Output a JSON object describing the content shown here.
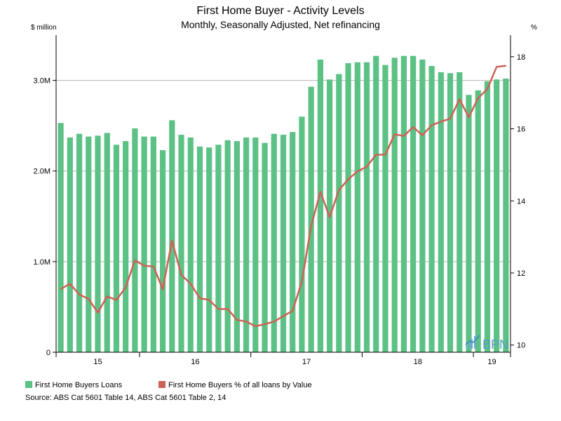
{
  "chart_data": {
    "type": "bar",
    "title": "First Home Buyer - Activity Levels",
    "subtitle": "Monthly, Seasonally Adjusted, Net refinancing",
    "left_unit": "$ million",
    "right_unit": "%",
    "y_left": {
      "min": 0,
      "max": 3.5,
      "ticks": [
        0,
        1,
        2,
        3
      ],
      "tick_labels": [
        "0",
        "1.0M",
        "2.0M",
        "3.0M"
      ]
    },
    "y_right": {
      "min": 9.8,
      "max": 18.6,
      "ticks": [
        10,
        12,
        14,
        16,
        18
      ],
      "tick_labels": [
        "10",
        "12",
        "14",
        "16",
        "18"
      ]
    },
    "x_year_labels": [
      "15",
      "16",
      "17",
      "18",
      "19"
    ],
    "grid": true,
    "series": [
      {
        "name": "First Home Buyers Loans",
        "type": "bar",
        "axis": "left",
        "color": "#5cc185",
        "values": [
          2.53,
          2.37,
          2.41,
          2.38,
          2.39,
          2.42,
          2.29,
          2.33,
          2.47,
          2.38,
          2.38,
          2.23,
          2.56,
          2.4,
          2.37,
          2.27,
          2.26,
          2.29,
          2.34,
          2.33,
          2.37,
          2.37,
          2.31,
          2.41,
          2.4,
          2.43,
          2.6,
          2.93,
          3.23,
          3.01,
          3.07,
          3.19,
          3.2,
          3.2,
          3.27,
          3.17,
          3.25,
          3.27,
          3.27,
          3.23,
          3.16,
          3.09,
          3.08,
          3.09,
          2.84,
          2.89,
          2.99,
          3.01,
          3.02
        ]
      },
      {
        "name": "First Home Buyers % of all loans by Value",
        "type": "line",
        "axis": "right",
        "color": "#cd6256",
        "values": [
          11.55,
          11.7,
          11.4,
          11.28,
          10.9,
          11.35,
          11.25,
          11.6,
          12.35,
          12.2,
          12.18,
          11.55,
          12.9,
          11.95,
          11.7,
          11.3,
          11.25,
          11.0,
          11.0,
          10.7,
          10.65,
          10.52,
          10.58,
          10.65,
          10.8,
          10.95,
          11.75,
          13.3,
          14.25,
          13.55,
          14.3,
          14.6,
          14.82,
          14.95,
          15.28,
          15.28,
          15.85,
          15.8,
          16.05,
          15.82,
          16.1,
          16.2,
          16.28,
          16.82,
          16.32,
          16.85,
          17.1,
          17.72,
          17.75
        ]
      }
    ],
    "legend_position": "bottom-left",
    "source": "Source: ABS Cat 5601 Table 14, ABS Cat 5601 Table 2, 14",
    "watermark": "BPN"
  }
}
